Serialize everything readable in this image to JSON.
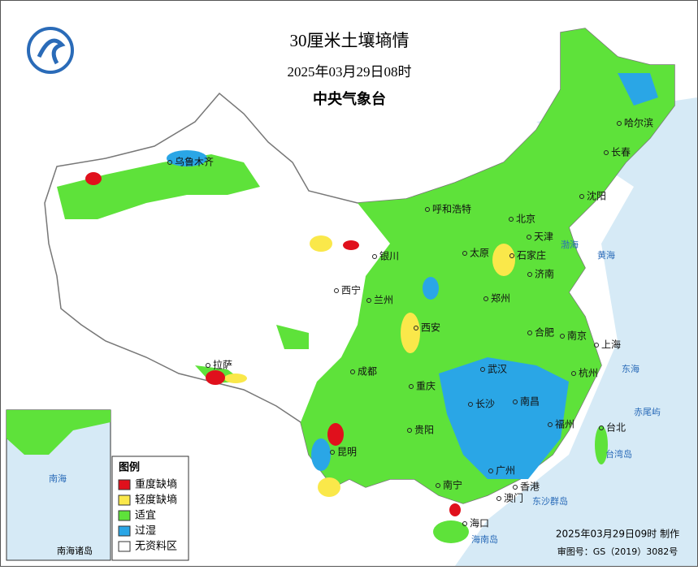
{
  "header": {
    "title": "30厘米土壤墒情",
    "time": "2025年03月29日08时",
    "issuer": "中央气象台"
  },
  "legend": {
    "title": "图例",
    "items": [
      {
        "label": "重度缺墒",
        "color": "#e0101c"
      },
      {
        "label": "轻度缺墒",
        "color": "#fae84a"
      },
      {
        "label": "适宜",
        "color": "#5ee23a"
      },
      {
        "label": "过湿",
        "color": "#2aa6e6"
      },
      {
        "label": "无资料区",
        "color": "#ffffff"
      }
    ]
  },
  "cities": [
    "哈尔滨",
    "长春",
    "沈阳",
    "北京",
    "天津",
    "石家庄",
    "济南",
    "太原",
    "呼和浩特",
    "银川",
    "西宁",
    "兰州",
    "西安",
    "郑州",
    "合肥",
    "南京",
    "上海",
    "杭州",
    "武汉",
    "长沙",
    "南昌",
    "福州",
    "台北",
    "成都",
    "重庆",
    "贵阳",
    "昆明",
    "南宁",
    "广州",
    "香港",
    "澳门",
    "海口",
    "拉萨",
    "乌鲁木齐"
  ],
  "places": [
    "渤海",
    "黄海",
    "东海",
    "台湾岛",
    "海南岛",
    "东沙群岛",
    "赤尾屿",
    "南海"
  ],
  "inset": {
    "label": "南海诸岛"
  },
  "footer": {
    "made": "2025年03月29日09时 制作",
    "approval": "审图号：GS（2019）3082号"
  }
}
